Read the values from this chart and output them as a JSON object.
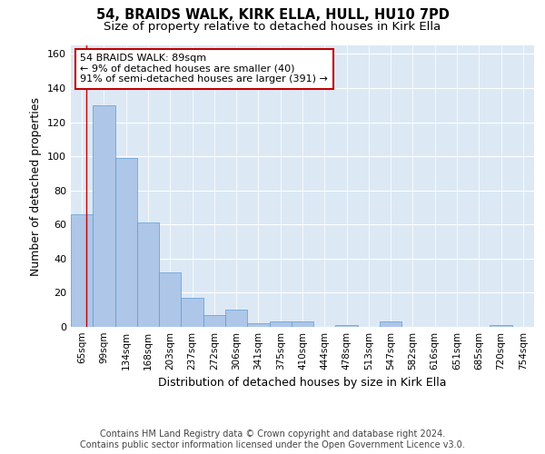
{
  "title_line1": "54, BRAIDS WALK, KIRK ELLA, HULL, HU10 7PD",
  "title_line2": "Size of property relative to detached houses in Kirk Ella",
  "xlabel": "Distribution of detached houses by size in Kirk Ella",
  "ylabel": "Number of detached properties",
  "bins": [
    "65sqm",
    "99sqm",
    "134sqm",
    "168sqm",
    "203sqm",
    "237sqm",
    "272sqm",
    "306sqm",
    "341sqm",
    "375sqm",
    "410sqm",
    "444sqm",
    "478sqm",
    "513sqm",
    "547sqm",
    "582sqm",
    "616sqm",
    "651sqm",
    "685sqm",
    "720sqm",
    "754sqm"
  ],
  "values": [
    66,
    130,
    99,
    61,
    32,
    17,
    7,
    10,
    2,
    3,
    3,
    0,
    1,
    0,
    3,
    0,
    0,
    0,
    0,
    1,
    0
  ],
  "bar_color": "#aec6e8",
  "bar_edge_color": "#5b9bd5",
  "vline_color": "#c00000",
  "annotation_text": "54 BRAIDS WALK: 89sqm\n← 9% of detached houses are smaller (40)\n91% of semi-detached houses are larger (391) →",
  "annotation_box_color": "#ffffff",
  "annotation_box_edge": "#c00000",
  "ylim": [
    0,
    165
  ],
  "yticks": [
    0,
    20,
    40,
    60,
    80,
    100,
    120,
    140,
    160
  ],
  "background_color": "#dce9f5",
  "grid_color": "#ffffff",
  "fig_background": "#ffffff",
  "footer_line1": "Contains HM Land Registry data © Crown copyright and database right 2024.",
  "footer_line2": "Contains public sector information licensed under the Open Government Licence v3.0.",
  "title_fontsize": 10.5,
  "subtitle_fontsize": 9.5,
  "label_fontsize": 9,
  "tick_fontsize": 7.5,
  "footer_fontsize": 7
}
